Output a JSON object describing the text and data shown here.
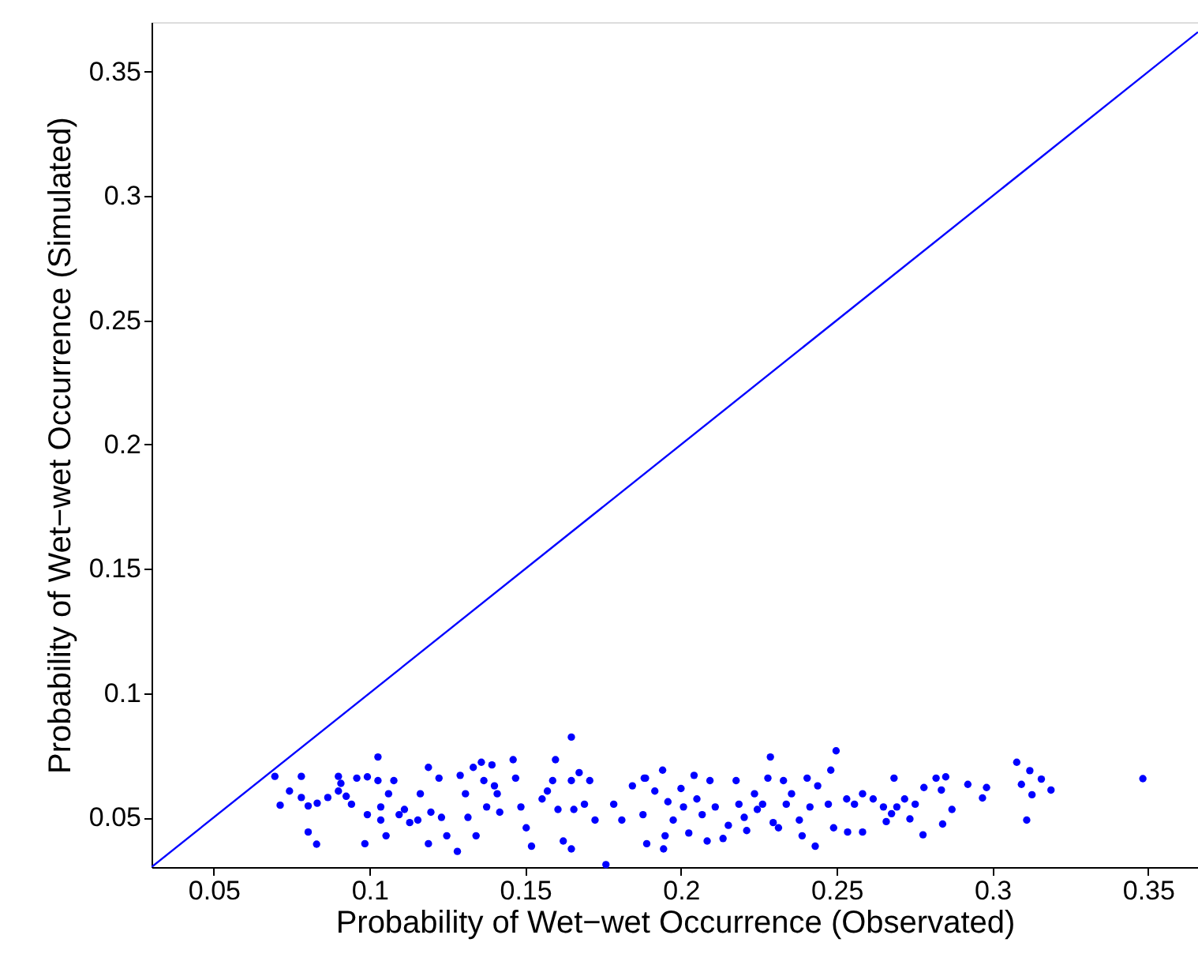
{
  "chart_data": {
    "type": "scatter",
    "xlabel": "Probability of Wet−wet Occurrence (Observated)",
    "ylabel": "Probability of Wet−wet Occurrence (Simulated)",
    "xlim": [
      0.03,
      0.366
    ],
    "ylim": [
      0.03,
      0.37
    ],
    "xticks": [
      0.05,
      0.1,
      0.15,
      0.2,
      0.25,
      0.3,
      0.35
    ],
    "yticks": [
      0.05,
      0.1,
      0.15,
      0.2,
      0.25,
      0.3,
      0.35
    ],
    "grid": false,
    "series": [
      {
        "marker": "circle",
        "color": "#0000ff",
        "x": [
          0.0696,
          0.0713,
          0.0743,
          0.0781,
          0.0781,
          0.0803,
          0.0803,
          0.0832,
          0.083,
          0.0866,
          0.09,
          0.0908,
          0.09,
          0.0925,
          0.0942,
          0.0959,
          0.0993,
          0.0985,
          0.0993,
          0.1027,
          0.1027,
          0.1036,
          0.1036,
          0.1053,
          0.1061,
          0.1078,
          0.1095,
          0.1112,
          0.1129,
          0.1155,
          0.1163,
          0.1189,
          0.1189,
          0.1197,
          0.1223,
          0.1231,
          0.1248,
          0.1282,
          0.1291,
          0.1308,
          0.1316,
          0.1333,
          0.1342,
          0.1359,
          0.1367,
          0.1376,
          0.1393,
          0.1401,
          0.141,
          0.1418,
          0.1461,
          0.1469,
          0.1486,
          0.1503,
          0.152,
          0.1554,
          0.1571,
          0.1588,
          0.1597,
          0.1605,
          0.1622,
          0.1648,
          0.1648,
          0.1648,
          0.1656,
          0.1673,
          0.169,
          0.1707,
          0.1724,
          0.1759,
          0.1784,
          0.181,
          0.1844,
          0.1878,
          0.1886,
          0.1882,
          0.189,
          0.1916,
          0.1941,
          0.1944,
          0.1949,
          0.1958,
          0.1975,
          0.2,
          0.2008,
          0.2025,
          0.2042,
          0.2051,
          0.2068,
          0.2084,
          0.2093,
          0.211,
          0.2135,
          0.2152,
          0.2177,
          0.2186,
          0.2203,
          0.2211,
          0.2236,
          0.2245,
          0.2262,
          0.2279,
          0.2287,
          0.2296,
          0.2313,
          0.2329,
          0.2338,
          0.2355,
          0.238,
          0.2389,
          0.2405,
          0.2414,
          0.2431,
          0.2439,
          0.2473,
          0.2481,
          0.249,
          0.2498,
          0.2532,
          0.2535,
          0.2557,
          0.2583,
          0.2583,
          0.2617,
          0.265,
          0.2659,
          0.2676,
          0.2684,
          0.2693,
          0.2718,
          0.2735,
          0.2752,
          0.2777,
          0.278,
          0.2819,
          0.2836,
          0.284,
          0.285,
          0.287,
          0.2921,
          0.2968,
          0.2981,
          0.3078,
          0.3093,
          0.311,
          0.312,
          0.3127,
          0.3157,
          0.3188,
          0.3483
        ],
        "values": [
          0.0665,
          0.0549,
          0.0606,
          0.0665,
          0.058,
          0.0546,
          0.0441,
          0.0557,
          0.0392,
          0.058,
          0.0665,
          0.0637,
          0.0606,
          0.0585,
          0.0553,
          0.0658,
          0.0663,
          0.0394,
          0.0511,
          0.0743,
          0.0648,
          0.0542,
          0.0489,
          0.0426,
          0.0595,
          0.0648,
          0.0511,
          0.0532,
          0.0479,
          0.0489,
          0.0595,
          0.0701,
          0.0394,
          0.0521,
          0.0658,
          0.05,
          0.0426,
          0.0363,
          0.0669,
          0.0595,
          0.05,
          0.0701,
          0.0426,
          0.0722,
          0.0648,
          0.0542,
          0.0711,
          0.0627,
          0.0595,
          0.0521,
          0.0732,
          0.0658,
          0.0542,
          0.0458,
          0.0384,
          0.0574,
          0.0606,
          0.0648,
          0.0732,
          0.0532,
          0.0405,
          0.0823,
          0.0648,
          0.0373,
          0.0532,
          0.068,
          0.0553,
          0.0648,
          0.0489,
          0.031,
          0.0553,
          0.0489,
          0.0627,
          0.0511,
          0.0658,
          0.0658,
          0.0394,
          0.0606,
          0.069,
          0.0373,
          0.0426,
          0.0563,
          0.0489,
          0.0616,
          0.0542,
          0.0437,
          0.0669,
          0.0574,
          0.0511,
          0.0405,
          0.0648,
          0.0542,
          0.0415,
          0.0468,
          0.0648,
          0.0553,
          0.05,
          0.0447,
          0.0595,
          0.0532,
          0.0553,
          0.0658,
          0.0743,
          0.0479,
          0.0458,
          0.0648,
          0.0553,
          0.0595,
          0.0489,
          0.0426,
          0.0658,
          0.0542,
          0.0384,
          0.0627,
          0.0553,
          0.069,
          0.0458,
          0.0768,
          0.0574,
          0.0441,
          0.0553,
          0.0595,
          0.0441,
          0.0574,
          0.0542,
          0.0483,
          0.0515,
          0.0658,
          0.0542,
          0.0574,
          0.0494,
          0.0553,
          0.043,
          0.062,
          0.0658,
          0.061,
          0.0473,
          0.0663,
          0.0532,
          0.0633,
          0.0578,
          0.062,
          0.0722,
          0.0633,
          0.0489,
          0.0688,
          0.0591,
          0.0654,
          0.061,
          0.0656
        ]
      },
      {
        "type": "line",
        "color": "#0000ff",
        "line_style": "solid",
        "marker": "none",
        "x": [
          0.03,
          0.366
        ],
        "values": [
          0.03,
          0.366
        ]
      }
    ]
  }
}
